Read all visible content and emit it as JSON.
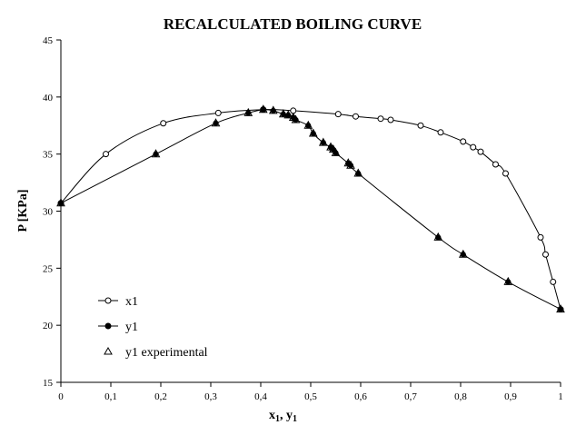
{
  "chart_data": {
    "type": "line",
    "title": "RECALCULATED BOILING CURVE",
    "xlabel_main": "x",
    "xlabel_sub1": "1",
    "xlabel_sep": ", y",
    "xlabel_sub2": "1",
    "ylabel": "P [KPa]",
    "xlim": [
      0,
      1
    ],
    "ylim": [
      15,
      45
    ],
    "x_ticks": [
      "0",
      "0,1",
      "0,2",
      "0,3",
      "0,4",
      "0,5",
      "0,6",
      "0,7",
      "0,8",
      "0,9",
      "1"
    ],
    "y_ticks": [
      "15",
      "20",
      "25",
      "30",
      "35",
      "40",
      "45"
    ],
    "grid": false,
    "legend_position": "bottom-left",
    "series": [
      {
        "name": "x1",
        "marker": "open-circle",
        "line": true,
        "x": [
          0.0,
          0.09,
          0.205,
          0.315,
          0.405,
          0.465,
          0.555,
          0.59,
          0.64,
          0.66,
          0.72,
          0.76,
          0.805,
          0.825,
          0.84,
          0.87,
          0.89,
          0.96,
          0.97,
          0.985,
          1.0
        ],
        "y": [
          30.7,
          35.0,
          37.7,
          38.6,
          38.9,
          38.8,
          38.5,
          38.3,
          38.1,
          38.0,
          37.5,
          36.9,
          36.1,
          35.6,
          35.2,
          34.1,
          33.3,
          27.7,
          26.2,
          23.8,
          21.4
        ]
      },
      {
        "name": "y1",
        "marker": "filled-circle",
        "line": true,
        "x": [
          0.0,
          0.19,
          0.31,
          0.375,
          0.405,
          0.425,
          0.445,
          0.455,
          0.465,
          0.47,
          0.495,
          0.505,
          0.525,
          0.54,
          0.545,
          0.55,
          0.575,
          0.58,
          0.595,
          0.755,
          0.805,
          0.895,
          1.0
        ],
        "y": [
          30.7,
          35.0,
          37.7,
          38.6,
          38.9,
          38.8,
          38.5,
          38.4,
          38.2,
          38.0,
          37.5,
          36.8,
          36.0,
          35.6,
          35.4,
          35.1,
          34.2,
          34.0,
          33.3,
          27.7,
          26.2,
          23.8,
          21.4
        ]
      },
      {
        "name": "y1 experimental",
        "marker": "open-triangle",
        "line": false,
        "x": [
          0.0,
          0.19,
          0.31,
          0.375,
          0.405,
          0.425,
          0.445,
          0.455,
          0.465,
          0.47,
          0.495,
          0.505,
          0.525,
          0.54,
          0.545,
          0.55,
          0.575,
          0.58,
          0.595,
          0.755,
          0.805,
          0.895,
          1.0
        ],
        "y": [
          30.7,
          35.0,
          37.7,
          38.6,
          38.9,
          38.8,
          38.5,
          38.4,
          38.2,
          38.0,
          37.5,
          36.8,
          36.0,
          35.6,
          35.4,
          35.1,
          34.2,
          34.0,
          33.3,
          27.7,
          26.2,
          23.8,
          21.4
        ]
      }
    ]
  }
}
